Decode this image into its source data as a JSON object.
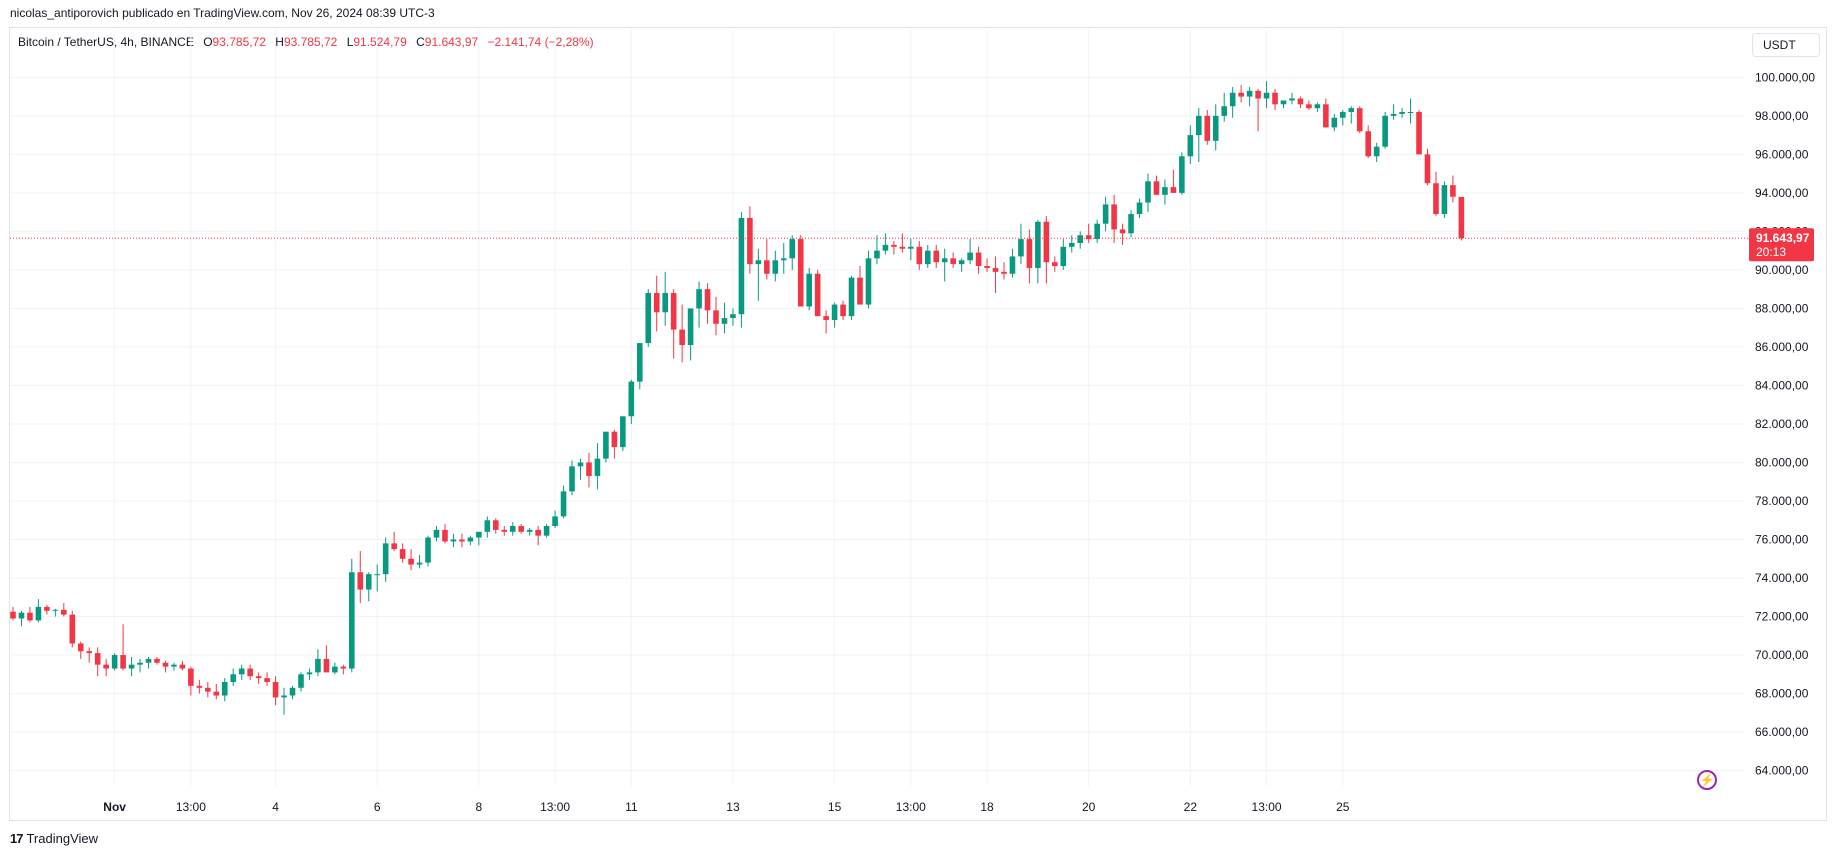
{
  "caption": "nicolas_antiporovich publicado en TradingView.com, Nov 26, 2024 08:39 UTC-3",
  "legend": {
    "symbol": "Bitcoin / TetherUS, 4h, BINANCE",
    "open_label": "O",
    "open_value": "93.785,72",
    "high_label": "H",
    "high_value": "93.785,72",
    "low_label": "L",
    "low_value": "91.524,79",
    "close_label": "C",
    "close_value": "91.643,97",
    "change": "−2.141,74 (−2,28%)"
  },
  "currency": "USDT",
  "brand": "TradingView",
  "colors": {
    "up": "#089981",
    "down": "#f23645",
    "grid": "#f0f3fa"
  },
  "chart_data": {
    "type": "candlestick",
    "symbol": "Bitcoin / TetherUS",
    "interval": "4h",
    "exchange": "BINANCE",
    "y_ticks": [
      64000,
      66000,
      68000,
      70000,
      72000,
      74000,
      76000,
      78000,
      80000,
      82000,
      84000,
      86000,
      88000,
      90000,
      92000,
      94000,
      96000,
      98000,
      100000
    ],
    "y_tick_labels": [
      "64.000,00",
      "66.000,00",
      "68.000,00",
      "70.000,00",
      "72.000,00",
      "74.000,00",
      "76.000,00",
      "78.000,00",
      "80.000,00",
      "82.000,00",
      "84.000,00",
      "86.000,00",
      "88.000,00",
      "90.000,00",
      "92.000,00",
      "94.000,00",
      "96.000,00",
      "98.000,00",
      "100.000,00"
    ],
    "ylim": [
      63200,
      100900
    ],
    "x_ticks": [
      {
        "label": "Nov",
        "index": 12,
        "bold": true
      },
      {
        "label": "13:00",
        "index": 21,
        "bold": false
      },
      {
        "label": "4",
        "index": 31,
        "bold": false
      },
      {
        "label": "6",
        "index": 43,
        "bold": false
      },
      {
        "label": "8",
        "index": 55,
        "bold": false
      },
      {
        "label": "13:00",
        "index": 64,
        "bold": false
      },
      {
        "label": "11",
        "index": 73,
        "bold": false
      },
      {
        "label": "13",
        "index": 85,
        "bold": false
      },
      {
        "label": "15",
        "index": 97,
        "bold": false
      },
      {
        "label": "13:00",
        "index": 106,
        "bold": false
      },
      {
        "label": "18",
        "index": 115,
        "bold": false
      },
      {
        "label": "20",
        "index": 127,
        "bold": false
      },
      {
        "label": "22",
        "index": 139,
        "bold": false
      },
      {
        "label": "13:00",
        "index": 148,
        "bold": false
      },
      {
        "label": "25",
        "index": 157,
        "bold": false
      }
    ],
    "last_price": 91643.97,
    "last_price_label": "91.643,97",
    "countdown": "20:13",
    "candles": [
      [
        72250,
        72500,
        71800,
        71900
      ],
      [
        71900,
        72300,
        71500,
        72200
      ],
      [
        72200,
        72500,
        71700,
        71800
      ],
      [
        71800,
        72900,
        71700,
        72500
      ],
      [
        72500,
        72600,
        72100,
        72300
      ],
      [
        72300,
        72400,
        72000,
        72350
      ],
      [
        72350,
        72700,
        72000,
        72100
      ],
      [
        72100,
        72300,
        70400,
        70600
      ],
      [
        70600,
        70700,
        69800,
        70200
      ],
      [
        70200,
        70400,
        69600,
        70100
      ],
      [
        70100,
        70400,
        68900,
        69500
      ],
      [
        69500,
        69800,
        68900,
        69300
      ],
      [
        69300,
        70100,
        69200,
        70000
      ],
      [
        70000,
        71600,
        69200,
        69300
      ],
      [
        69300,
        69900,
        68900,
        69500
      ],
      [
        69500,
        69800,
        69100,
        69600
      ],
      [
        69600,
        69900,
        69300,
        69800
      ],
      [
        69800,
        69900,
        69500,
        69600
      ],
      [
        69600,
        69700,
        69100,
        69400
      ],
      [
        69400,
        69600,
        69200,
        69500
      ],
      [
        69500,
        69700,
        69200,
        69300
      ],
      [
        69300,
        69400,
        67900,
        68400
      ],
      [
        68400,
        68700,
        68000,
        68300
      ],
      [
        68300,
        68600,
        67800,
        68100
      ],
      [
        68100,
        68500,
        67700,
        67900
      ],
      [
        67900,
        68800,
        67600,
        68600
      ],
      [
        68600,
        69300,
        68400,
        69000
      ],
      [
        69000,
        69500,
        68700,
        69300
      ],
      [
        69300,
        69500,
        68700,
        68900
      ],
      [
        68900,
        69100,
        68500,
        68800
      ],
      [
        68800,
        69100,
        68400,
        68600
      ],
      [
        68600,
        68900,
        67400,
        67800
      ],
      [
        67800,
        68300,
        66900,
        67900
      ],
      [
        67900,
        68400,
        67700,
        68300
      ],
      [
        68300,
        69100,
        68100,
        69000
      ],
      [
        69000,
        69300,
        68700,
        69100
      ],
      [
        69100,
        70300,
        68900,
        69800
      ],
      [
        69800,
        70500,
        69100,
        69100
      ],
      [
        69100,
        69600,
        69000,
        69400
      ],
      [
        69400,
        69500,
        69000,
        69300
      ],
      [
        69300,
        75000,
        69100,
        74300
      ],
      [
        74300,
        75400,
        72700,
        73400
      ],
      [
        73400,
        74300,
        72800,
        74200
      ],
      [
        74200,
        74700,
        73300,
        74200
      ],
      [
        74200,
        76100,
        73800,
        75800
      ],
      [
        75800,
        76400,
        75400,
        75500
      ],
      [
        75500,
        75800,
        74800,
        75000
      ],
      [
        75000,
        75500,
        74400,
        74700
      ],
      [
        74700,
        75200,
        74500,
        74800
      ],
      [
        74800,
        76200,
        74600,
        76100
      ],
      [
        76100,
        76700,
        75900,
        76500
      ],
      [
        76500,
        76800,
        75800,
        75900
      ],
      [
        75900,
        76300,
        75600,
        76000
      ],
      [
        76000,
        76300,
        75600,
        75900
      ],
      [
        75900,
        76200,
        75700,
        76100
      ],
      [
        76100,
        76400,
        75700,
        76400
      ],
      [
        76400,
        77200,
        76100,
        77000
      ],
      [
        77000,
        77100,
        76300,
        76500
      ],
      [
        76500,
        76700,
        76200,
        76400
      ],
      [
        76400,
        76900,
        76200,
        76700
      ],
      [
        76700,
        76800,
        76300,
        76400
      ],
      [
        76400,
        76600,
        76200,
        76500
      ],
      [
        76500,
        76700,
        75700,
        76200
      ],
      [
        76200,
        76800,
        76100,
        76700
      ],
      [
        76700,
        77500,
        76600,
        77200
      ],
      [
        77200,
        78800,
        77100,
        78500
      ],
      [
        78500,
        80100,
        78300,
        79800
      ],
      [
        79800,
        80200,
        79100,
        80000
      ],
      [
        80000,
        80500,
        78700,
        79300
      ],
      [
        79300,
        81000,
        78600,
        80200
      ],
      [
        80200,
        81500,
        80000,
        81600
      ],
      [
        81600,
        81700,
        80200,
        80800
      ],
      [
        80800,
        82300,
        80600,
        82400
      ],
      [
        82400,
        84300,
        82000,
        84200
      ],
      [
        84200,
        86200,
        83800,
        86200
      ],
      [
        86200,
        89000,
        86000,
        88800
      ],
      [
        88800,
        89700,
        86800,
        87800
      ],
      [
        87800,
        89900,
        87100,
        88800
      ],
      [
        88800,
        89000,
        85400,
        86900
      ],
      [
        86900,
        88200,
        85200,
        86100
      ],
      [
        86100,
        88000,
        85300,
        88000
      ],
      [
        88000,
        89400,
        87000,
        89000
      ],
      [
        89000,
        89300,
        87200,
        87900
      ],
      [
        87900,
        88600,
        86600,
        87200
      ],
      [
        87200,
        88300,
        86700,
        87500
      ],
      [
        87500,
        88000,
        87100,
        87700
      ],
      [
        87700,
        93000,
        87000,
        92700
      ],
      [
        92700,
        93300,
        89800,
        90300
      ],
      [
        90300,
        91100,
        88400,
        90500
      ],
      [
        90500,
        91600,
        89500,
        89800
      ],
      [
        89800,
        91000,
        89400,
        90500
      ],
      [
        90500,
        91400,
        89800,
        90600
      ],
      [
        90600,
        91800,
        90000,
        91600
      ],
      [
        91600,
        91800,
        88200,
        88100
      ],
      [
        88100,
        90100,
        87900,
        89800
      ],
      [
        89800,
        90000,
        87600,
        87600
      ],
      [
        87600,
        87900,
        86700,
        87400
      ],
      [
        87400,
        88300,
        87000,
        88200
      ],
      [
        88200,
        88400,
        87400,
        87600
      ],
      [
        87600,
        89700,
        87400,
        89600
      ],
      [
        89600,
        90200,
        88300,
        88200
      ],
      [
        88200,
        91000,
        88000,
        90600
      ],
      [
        90600,
        91800,
        90300,
        91000
      ],
      [
        91000,
        91900,
        90800,
        91300
      ],
      [
        91300,
        91500,
        90800,
        91200
      ],
      [
        91200,
        91900,
        90900,
        91100
      ],
      [
        91100,
        91600,
        90500,
        91200
      ],
      [
        91200,
        91500,
        90000,
        90300
      ],
      [
        90300,
        91300,
        90100,
        91000
      ],
      [
        91000,
        91300,
        90100,
        90400
      ],
      [
        90400,
        91100,
        89400,
        90600
      ],
      [
        90600,
        90900,
        90100,
        90300
      ],
      [
        90300,
        90600,
        89900,
        90500
      ],
      [
        90500,
        91600,
        90300,
        90900
      ],
      [
        90900,
        91200,
        89800,
        90200
      ],
      [
        90200,
        90600,
        89900,
        90100
      ],
      [
        90100,
        90700,
        88800,
        89900
      ],
      [
        89900,
        90400,
        89500,
        89800
      ],
      [
        89800,
        91100,
        89600,
        90700
      ],
      [
        90700,
        92400,
        90300,
        91600
      ],
      [
        91600,
        92100,
        89300,
        90100
      ],
      [
        90100,
        92600,
        89300,
        92500
      ],
      [
        92500,
        92800,
        89300,
        90400
      ],
      [
        90400,
        90700,
        89900,
        90200
      ],
      [
        90200,
        91600,
        90000,
        91200
      ],
      [
        91200,
        91800,
        90900,
        91400
      ],
      [
        91400,
        92000,
        91100,
        91800
      ],
      [
        91800,
        92400,
        91400,
        91600
      ],
      [
        91600,
        92600,
        91400,
        92400
      ],
      [
        92400,
        93800,
        92000,
        93400
      ],
      [
        93400,
        93900,
        91400,
        92100
      ],
      [
        92100,
        92400,
        91300,
        91900
      ],
      [
        91900,
        93100,
        91700,
        92900
      ],
      [
        92900,
        93700,
        92700,
        93500
      ],
      [
        93500,
        95000,
        93000,
        94600
      ],
      [
        94600,
        94900,
        93900,
        93900
      ],
      [
        93900,
        94700,
        93400,
        94300
      ],
      [
        94300,
        95200,
        94000,
        94000
      ],
      [
        94000,
        96100,
        93900,
        95900
      ],
      [
        95900,
        97500,
        95500,
        97000
      ],
      [
        97000,
        98400,
        95600,
        98000
      ],
      [
        98000,
        98300,
        96500,
        96700
      ],
      [
        96700,
        98600,
        96200,
        98000
      ],
      [
        98000,
        99200,
        97700,
        98500
      ],
      [
        98500,
        99500,
        97900,
        99200
      ],
      [
        99200,
        99600,
        98700,
        99000
      ],
      [
        99000,
        99500,
        98500,
        99300
      ],
      [
        99300,
        99400,
        97200,
        98900
      ],
      [
        98900,
        99800,
        98400,
        99200
      ],
      [
        99200,
        99400,
        98300,
        98600
      ],
      [
        98600,
        98800,
        98400,
        98800
      ],
      [
        98800,
        99200,
        98600,
        98900
      ],
      [
        98900,
        99000,
        98400,
        98600
      ],
      [
        98600,
        98800,
        98300,
        98400
      ],
      [
        98400,
        98700,
        98200,
        98600
      ],
      [
        98600,
        98900,
        97400,
        97400
      ],
      [
        97400,
        98100,
        97200,
        97900
      ],
      [
        97900,
        98300,
        97500,
        98200
      ],
      [
        98200,
        98500,
        97600,
        98400
      ],
      [
        98400,
        98500,
        97100,
        97200
      ],
      [
        97200,
        97500,
        95800,
        95900
      ],
      [
        95900,
        96600,
        95600,
        96400
      ],
      [
        96400,
        98200,
        96300,
        98000
      ],
      [
        98000,
        98600,
        97800,
        98100
      ],
      [
        98100,
        98400,
        97900,
        98200
      ],
      [
        98200,
        98900,
        97600,
        98200
      ],
      [
        98200,
        98300,
        96000,
        96000
      ],
      [
        96000,
        96300,
        94400,
        94500
      ],
      [
        94500,
        95100,
        92800,
        92900
      ],
      [
        92900,
        94600,
        92700,
        94400
      ],
      [
        94400,
        94900,
        93500,
        93800
      ],
      [
        93785,
        93785,
        91525,
        91644
      ]
    ]
  }
}
